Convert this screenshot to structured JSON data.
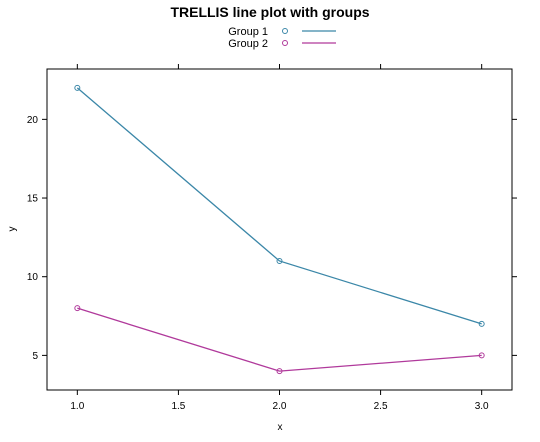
{
  "chart_data": {
    "type": "line",
    "title": "TRELLIS line plot with groups",
    "xlabel": "x",
    "ylabel": "y",
    "x": [
      1.0,
      2.0,
      3.0
    ],
    "xlim": [
      0.85,
      3.15
    ],
    "ylim": [
      2.8,
      23.2
    ],
    "xticks": [
      "1.0",
      "1.5",
      "2.0",
      "2.5",
      "3.0"
    ],
    "xtick_values": [
      1.0,
      1.5,
      2.0,
      2.5,
      3.0
    ],
    "yticks": [
      "5",
      "10",
      "15",
      "20"
    ],
    "ytick_values": [
      5,
      10,
      15,
      20
    ],
    "grid": false,
    "legend_position": "top",
    "series": [
      {
        "name": "Group 1",
        "values": [
          22,
          11,
          7
        ],
        "color": "#3b87a8"
      },
      {
        "name": "Group 2",
        "values": [
          8,
          4,
          5
        ],
        "color": "#b0399b"
      }
    ]
  }
}
